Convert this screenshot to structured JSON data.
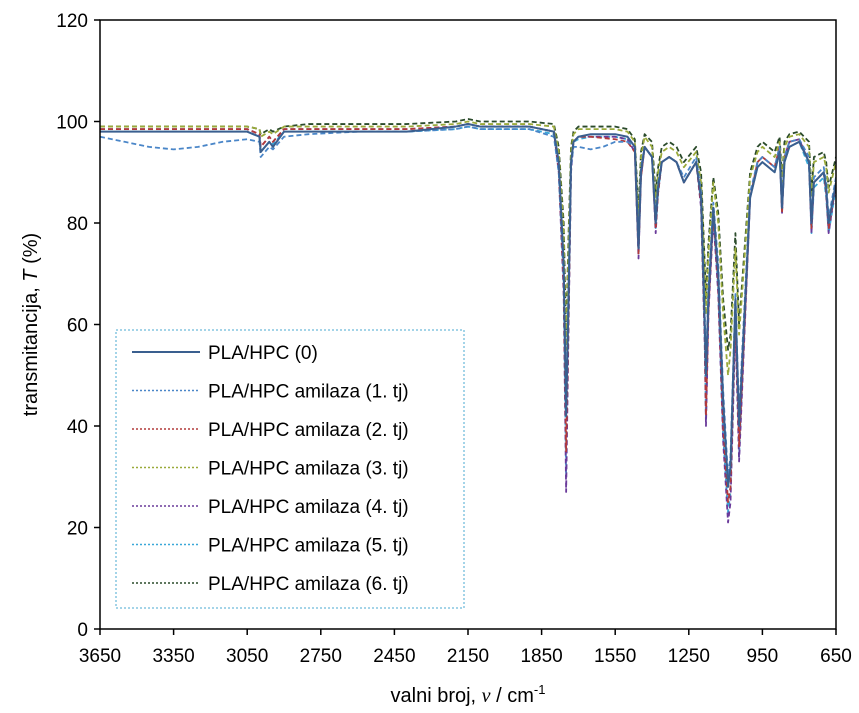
{
  "chart_data": {
    "type": "line",
    "xlabel": {
      "prefix": "valni broj,  ",
      "symbol": "ν",
      "middle": " / cm",
      "sup": "-1"
    },
    "ylabel": {
      "prefix": "transmitancija,  ",
      "symbol": "T",
      "suffix": " (%)"
    },
    "xlim": [
      3650,
      650
    ],
    "ylim": [
      0,
      120
    ],
    "x_reversed": true,
    "xticks": [
      3650,
      3350,
      3050,
      2750,
      2450,
      2150,
      1850,
      1550,
      1250,
      950,
      650
    ],
    "xtick_labels": [
      "3650",
      "3350",
      "3050",
      "2750",
      "2450",
      "2150",
      "1850",
      "1550",
      "1250",
      "950",
      "650"
    ],
    "yticks": [
      0,
      20,
      40,
      60,
      80,
      100,
      120
    ],
    "ytick_labels": [
      "0",
      "20",
      "40",
      "60",
      "80",
      "100",
      "120"
    ],
    "grid": false,
    "legend_position": "bottom-left",
    "series": [
      {
        "name": "PLA/HPC (0)",
        "color": "#3a5f8f",
        "style": "solid",
        "x": [
          3650,
          3500,
          3350,
          3200,
          3050,
          3000,
          2995,
          2960,
          2945,
          2900,
          2800,
          2600,
          2400,
          2200,
          2150,
          2100,
          1900,
          1800,
          1780,
          1760,
          1750,
          1740,
          1730,
          1720,
          1700,
          1650,
          1550,
          1500,
          1470,
          1455,
          1445,
          1430,
          1400,
          1385,
          1375,
          1360,
          1330,
          1300,
          1270,
          1220,
          1200,
          1185,
          1180,
          1170,
          1150,
          1130,
          1110,
          1090,
          1080,
          1060,
          1045,
          1030,
          1000,
          970,
          950,
          900,
          880,
          870,
          860,
          840,
          800,
          760,
          750,
          740,
          700,
          690,
          680,
          650
        ],
        "y": [
          98,
          98,
          98,
          98,
          98,
          97,
          94,
          96,
          95,
          98,
          98,
          98,
          98,
          99,
          99.5,
          99,
          99,
          98,
          92,
          72,
          42,
          65,
          92,
          96,
          97,
          97.5,
          97.5,
          97,
          95,
          75,
          90,
          95,
          93,
          80,
          87,
          92,
          93,
          92,
          88,
          92,
          85,
          60,
          50,
          65,
          83,
          70,
          45,
          28,
          32,
          65,
          40,
          55,
          85,
          91,
          92,
          90,
          94,
          83,
          92,
          95,
          96,
          92,
          80,
          88,
          90,
          87,
          80,
          88
        ]
      },
      {
        "name": "PLA/HPC amilaza (1. tj)",
        "color": "#4a86c8",
        "style": "dotted",
        "x": [
          3650,
          3550,
          3450,
          3350,
          3250,
          3150,
          3050,
          3000,
          2995,
          2960,
          2945,
          2900,
          2800,
          2600,
          2400,
          2200,
          2150,
          2100,
          1900,
          1800,
          1780,
          1760,
          1750,
          1740,
          1730,
          1720,
          1700,
          1650,
          1600,
          1550,
          1500,
          1470,
          1455,
          1445,
          1430,
          1400,
          1385,
          1375,
          1360,
          1330,
          1300,
          1270,
          1220,
          1200,
          1185,
          1180,
          1170,
          1150,
          1130,
          1110,
          1090,
          1080,
          1060,
          1045,
          1030,
          1000,
          970,
          950,
          900,
          880,
          870,
          860,
          840,
          800,
          760,
          750,
          740,
          700,
          690,
          680,
          650
        ],
        "y": [
          97,
          96,
          95,
          94.5,
          95,
          96,
          96.5,
          96,
          93,
          95,
          94.5,
          97,
          97.5,
          98,
          98,
          98.5,
          99,
          98.5,
          98.5,
          97,
          90,
          70,
          45,
          68,
          91,
          95,
          95,
          94.5,
          95,
          96,
          96,
          95,
          76,
          91,
          95,
          93,
          81,
          88,
          92,
          93,
          92,
          89,
          93,
          86,
          62,
          52,
          67,
          84,
          72,
          47,
          30,
          34,
          66,
          42,
          57,
          86,
          92,
          93,
          91,
          95,
          84,
          93,
          96,
          96.5,
          93,
          81,
          89,
          91,
          88,
          81,
          89
        ]
      },
      {
        "name": "PLA/HPC amilaza (2. tj)",
        "color": "#b23a3a",
        "style": "dotted",
        "x": [
          3650,
          3500,
          3350,
          3200,
          3050,
          3000,
          2995,
          2960,
          2945,
          2900,
          2800,
          2600,
          2400,
          2200,
          2150,
          2100,
          1900,
          1800,
          1780,
          1760,
          1750,
          1740,
          1730,
          1720,
          1700,
          1650,
          1550,
          1500,
          1470,
          1455,
          1445,
          1430,
          1400,
          1385,
          1375,
          1360,
          1330,
          1300,
          1270,
          1220,
          1200,
          1185,
          1180,
          1170,
          1150,
          1130,
          1110,
          1090,
          1080,
          1060,
          1045,
          1030,
          1000,
          970,
          950,
          900,
          880,
          870,
          860,
          840,
          800,
          760,
          750,
          740,
          700,
          690,
          680,
          650
        ],
        "y": [
          98.5,
          98.5,
          98.5,
          98.5,
          98.5,
          97.5,
          95,
          97,
          96,
          98.5,
          98.5,
          98.5,
          98.5,
          99,
          99.5,
          99,
          99,
          98,
          91,
          68,
          35,
          62,
          91,
          96,
          97,
          97,
          96.5,
          96,
          94,
          74,
          89,
          95,
          93,
          79,
          86,
          92,
          93,
          92,
          88,
          92,
          84,
          58,
          42,
          63,
          82,
          68,
          40,
          25,
          28,
          62,
          36,
          52,
          85,
          92,
          93,
          91,
          95,
          82,
          93,
          96,
          96.5,
          92,
          79,
          88,
          90,
          86,
          79,
          88
        ]
      },
      {
        "name": "PLA/HPC amilaza (3. tj)",
        "color": "#9aaa3a",
        "style": "dotted",
        "x": [
          3650,
          3500,
          3350,
          3200,
          3050,
          3000,
          2995,
          2960,
          2945,
          2900,
          2800,
          2600,
          2400,
          2200,
          2150,
          2100,
          1900,
          1800,
          1780,
          1760,
          1750,
          1740,
          1730,
          1720,
          1700,
          1650,
          1550,
          1500,
          1470,
          1455,
          1445,
          1430,
          1400,
          1385,
          1375,
          1360,
          1330,
          1300,
          1270,
          1220,
          1200,
          1185,
          1180,
          1170,
          1150,
          1130,
          1110,
          1090,
          1080,
          1060,
          1045,
          1030,
          1000,
          970,
          950,
          900,
          880,
          870,
          860,
          840,
          800,
          760,
          750,
          740,
          700,
          690,
          680,
          650
        ],
        "y": [
          99,
          99,
          99,
          99,
          99,
          98.5,
          97,
          98,
          97.5,
          99,
          99,
          99,
          99,
          99.5,
          100,
          99.5,
          99.5,
          99,
          94,
          78,
          55,
          75,
          94,
          97.5,
          98.5,
          98.5,
          98.5,
          98,
          96,
          80,
          93,
          97,
          95,
          84,
          90,
          94,
          95,
          94,
          91,
          94,
          88,
          70,
          62,
          74,
          88,
          80,
          62,
          50,
          55,
          75,
          58,
          68,
          89,
          94,
          95,
          93,
          96,
          88,
          95,
          97,
          97.5,
          95,
          85,
          92,
          93,
          91,
          86,
          92
        ]
      },
      {
        "name": "PLA/HPC amilaza (4. tj)",
        "color": "#6a3a9a",
        "style": "dotted",
        "x": [
          3650,
          3500,
          3350,
          3200,
          3050,
          3000,
          2995,
          2960,
          2945,
          2900,
          2800,
          2600,
          2400,
          2200,
          2150,
          2100,
          1900,
          1800,
          1780,
          1760,
          1750,
          1740,
          1730,
          1720,
          1700,
          1650,
          1550,
          1500,
          1470,
          1455,
          1445,
          1430,
          1400,
          1385,
          1375,
          1360,
          1330,
          1300,
          1270,
          1220,
          1200,
          1185,
          1180,
          1170,
          1150,
          1130,
          1110,
          1090,
          1080,
          1060,
          1045,
          1030,
          1000,
          970,
          950,
          900,
          880,
          870,
          860,
          840,
          800,
          760,
          750,
          740,
          700,
          690,
          680,
          650
        ],
        "y": [
          98.5,
          98.5,
          98.5,
          98.5,
          98.5,
          97.5,
          95,
          97,
          96,
          98.5,
          98.5,
          98.5,
          98.5,
          99,
          99.5,
          99,
          99,
          98,
          90,
          66,
          27,
          60,
          90,
          96,
          97,
          97,
          97,
          96.5,
          94,
          73,
          89,
          95,
          93,
          78,
          86,
          92,
          93,
          92,
          88,
          92,
          83,
          56,
          40,
          62,
          81,
          66,
          37,
          21,
          25,
          60,
          33,
          50,
          85,
          92,
          93,
          91,
          95,
          82,
          93,
          96,
          96.5,
          92,
          78,
          88,
          90,
          86,
          78,
          88
        ]
      },
      {
        "name": "PLA/HPC amilaza (5. tj)",
        "color": "#3aa8d8",
        "style": "dotted",
        "x": [
          3650,
          3500,
          3350,
          3200,
          3050,
          3000,
          2995,
          2960,
          2945,
          2900,
          2800,
          2600,
          2400,
          2200,
          2150,
          2100,
          1900,
          1800,
          1780,
          1760,
          1750,
          1740,
          1730,
          1720,
          1700,
          1650,
          1550,
          1500,
          1470,
          1455,
          1445,
          1430,
          1400,
          1385,
          1375,
          1360,
          1330,
          1300,
          1270,
          1220,
          1200,
          1185,
          1180,
          1170,
          1150,
          1130,
          1110,
          1090,
          1080,
          1060,
          1045,
          1030,
          1000,
          970,
          950,
          900,
          880,
          870,
          860,
          840,
          800,
          760,
          750,
          740,
          700,
          690,
          680,
          650
        ],
        "y": [
          98,
          98,
          98,
          98,
          98,
          97,
          94,
          96,
          95.5,
          98,
          98,
          98,
          98,
          98.5,
          99,
          98.5,
          98.5,
          97.5,
          90,
          68,
          30,
          62,
          91,
          96,
          96.5,
          97,
          97,
          96.5,
          94,
          74,
          89,
          95,
          93,
          79,
          86,
          92,
          93,
          92,
          88,
          92,
          84,
          57,
          41,
          63,
          82,
          67,
          38,
          23,
          27,
          61,
          34,
          51,
          85,
          91,
          92,
          90,
          94,
          82,
          92,
          95,
          96,
          91,
          78,
          87,
          89,
          85,
          78,
          87
        ]
      },
      {
        "name": "PLA/HPC amilaza (6. tj)",
        "color": "#2a4a2a",
        "style": "dotted",
        "x": [
          3650,
          3500,
          3350,
          3200,
          3050,
          3000,
          2995,
          2960,
          2945,
          2900,
          2800,
          2600,
          2400,
          2200,
          2150,
          2100,
          1900,
          1800,
          1780,
          1760,
          1750,
          1740,
          1730,
          1720,
          1700,
          1650,
          1550,
          1500,
          1470,
          1455,
          1445,
          1430,
          1400,
          1385,
          1375,
          1360,
          1330,
          1300,
          1270,
          1220,
          1200,
          1185,
          1180,
          1170,
          1150,
          1130,
          1110,
          1090,
          1080,
          1060,
          1045,
          1030,
          1000,
          970,
          950,
          900,
          880,
          870,
          860,
          840,
          800,
          760,
          750,
          740,
          700,
          690,
          680,
          650
        ],
        "y": [
          99,
          99,
          99,
          99,
          99,
          98.5,
          97.5,
          98.5,
          98,
          99,
          99.5,
          99.5,
          99.5,
          100,
          100.5,
          100,
          100,
          99.5,
          95,
          80,
          58,
          78,
          95,
          98,
          99,
          99,
          99,
          98.5,
          96.5,
          82,
          94,
          97.5,
          96,
          86,
          91,
          95,
          96,
          95,
          92,
          95,
          90,
          72,
          65,
          76,
          89,
          82,
          65,
          55,
          58,
          78,
          60,
          70,
          90,
          95,
          96,
          94,
          97,
          89,
          96,
          97.5,
          98,
          96,
          86,
          93,
          94,
          92,
          87,
          93
        ]
      }
    ]
  }
}
